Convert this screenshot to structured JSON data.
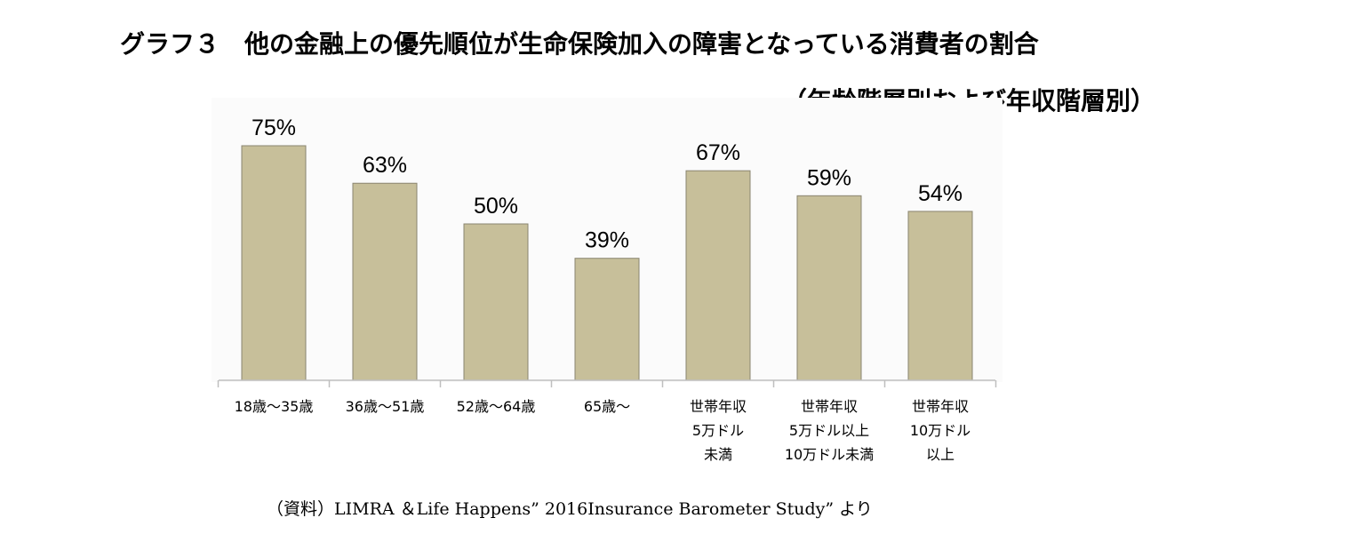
{
  "header": {
    "title": "グラフ３　他の金融上の優先順位が生命保険加入の障害となっている消費者の割合",
    "subtitle": "（年齢階層別および年収階層別）"
  },
  "chart_data": {
    "type": "bar",
    "title": "グラフ３　他の金融上の優先順位が生命保険加入の障害となっている消費者の割合",
    "subtitle": "（年齢階層別および年収階層別）",
    "categories": [
      "18歳～35歳",
      "36歳～51歳",
      "52歳～64歳",
      "65歳～",
      "世帯年収\n5万ドル\n未満",
      "世帯年収\n5万ドル以上\n10万ドル未満",
      "世帯年収\n10万ドル\n以上"
    ],
    "values": [
      75,
      63,
      50,
      39,
      67,
      59,
      54
    ],
    "data_labels": [
      "75%",
      "63%",
      "50%",
      "39%",
      "67%",
      "59%",
      "54%"
    ],
    "unit": "%",
    "ylim": [
      0,
      100
    ],
    "grid": false,
    "legend": "none",
    "bar_color": "#c7bf9a",
    "bar_edge_color": "#8a8470",
    "axis_color": "#bfbfbf"
  },
  "footer": {
    "source": "（資料）LIMRA ＆Life Happens” 2016Insurance Barometer Study” より"
  }
}
